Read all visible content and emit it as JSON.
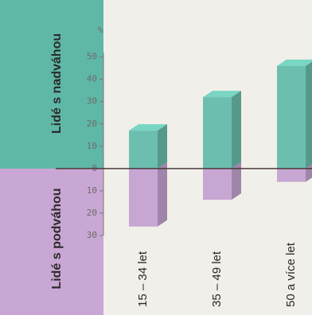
{
  "chart_data": {
    "type": "diverging-bar",
    "y_unit": "%",
    "categories": [
      "15 – 34 let",
      "35 – 49 let",
      "50 a více let"
    ],
    "series": [
      {
        "name": "Lidé s nadváhou",
        "color": "#6cbfae",
        "values": [
          17,
          32,
          46
        ]
      },
      {
        "name": "Lidé s podváhou",
        "color": "#c7a6d3",
        "values": [
          -26,
          -14,
          -6
        ]
      }
    ],
    "ylim": [
      -30,
      52
    ],
    "yticks": [
      {
        "value": -30,
        "label": "30"
      },
      {
        "value": -20,
        "label": "20"
      },
      {
        "value": -10,
        "label": "10"
      },
      0,
      10,
      20,
      30,
      40,
      50
    ]
  }
}
